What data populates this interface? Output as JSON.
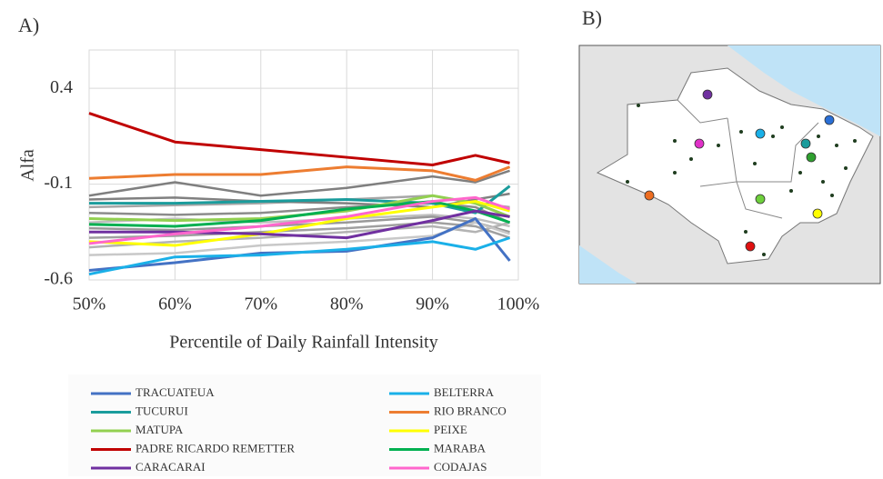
{
  "chart_data": {
    "type": "line",
    "panel_label": "A)",
    "map_label": "B)",
    "ylabel": "Alfa",
    "xlabel": "Percentile of Daily Rainfall Intensity",
    "x": [
      50,
      60,
      70,
      80,
      90,
      95,
      99
    ],
    "xlim": [
      50,
      100
    ],
    "xticks": [
      {
        "value": 50,
        "label": "50%"
      },
      {
        "value": 60,
        "label": "60%"
      },
      {
        "value": 70,
        "label": "70%"
      },
      {
        "value": 80,
        "label": "80%"
      },
      {
        "value": 90,
        "label": "90%"
      },
      {
        "value": 100,
        "label": "100%"
      }
    ],
    "ylim": [
      -0.6,
      0.6
    ],
    "yticks": [
      -0.6,
      -0.1,
      0.4
    ],
    "grid": true,
    "legend": "bottom",
    "series": [
      {
        "name": "TRACUATEUA",
        "color": "#4472c4",
        "values": [
          -0.55,
          -0.51,
          -0.46,
          -0.45,
          -0.38,
          -0.28,
          -0.5
        ]
      },
      {
        "name": "BELTERRA",
        "color": "#1ab0e8",
        "values": [
          -0.57,
          -0.48,
          -0.47,
          -0.44,
          -0.4,
          -0.44,
          -0.38
        ]
      },
      {
        "name": "TUCURUI",
        "color": "#1a9c9c",
        "values": [
          -0.2,
          -0.2,
          -0.19,
          -0.18,
          -0.2,
          -0.25,
          -0.11
        ]
      },
      {
        "name": "RIO BRANCO",
        "color": "#ed7d31",
        "values": [
          -0.07,
          -0.05,
          -0.05,
          -0.01,
          -0.03,
          -0.08,
          -0.01
        ]
      },
      {
        "name": "MATUPA",
        "color": "#92d050",
        "values": [
          -0.28,
          -0.29,
          -0.28,
          -0.24,
          -0.16,
          -0.2,
          -0.27
        ]
      },
      {
        "name": "PEIXE",
        "color": "#ffff00",
        "values": [
          -0.4,
          -0.42,
          -0.36,
          -0.28,
          -0.22,
          -0.19,
          -0.24
        ]
      },
      {
        "name": "PADRE RICARDO REMETTER",
        "color": "#c00000",
        "values": [
          0.27,
          0.12,
          0.08,
          0.04,
          0.0,
          0.05,
          0.01
        ]
      },
      {
        "name": "MARABA",
        "color": "#00b050",
        "values": [
          -0.31,
          -0.32,
          -0.29,
          -0.23,
          -0.19,
          -0.24,
          -0.3
        ]
      },
      {
        "name": "CARACARAI",
        "color": "#7030a0",
        "values": [
          -0.35,
          -0.35,
          -0.36,
          -0.38,
          -0.29,
          -0.24,
          -0.27
        ]
      },
      {
        "name": "CODAJAS",
        "color": "#ff66cc",
        "values": [
          -0.41,
          -0.36,
          -0.32,
          -0.27,
          -0.19,
          -0.17,
          -0.23
        ]
      },
      {
        "color": "#7f7f7f",
        "values": [
          -0.16,
          -0.09,
          -0.16,
          -0.12,
          -0.06,
          -0.09,
          -0.03
        ]
      },
      {
        "color": "#a6a6a6",
        "values": [
          -0.22,
          -0.21,
          -0.2,
          -0.18,
          -0.16,
          -0.2,
          -0.22
        ]
      },
      {
        "color": "#8c8c8c",
        "values": [
          -0.25,
          -0.26,
          -0.25,
          -0.22,
          -0.2,
          -0.22,
          -0.3
        ]
      },
      {
        "color": "#bfbfbf",
        "values": [
          -0.3,
          -0.28,
          -0.3,
          -0.28,
          -0.26,
          -0.28,
          -0.32
        ]
      },
      {
        "color": "#999999",
        "values": [
          -0.33,
          -0.34,
          -0.32,
          -0.3,
          -0.27,
          -0.3,
          -0.35
        ]
      },
      {
        "color": "#b3b3b3",
        "values": [
          -0.43,
          -0.4,
          -0.38,
          -0.35,
          -0.32,
          -0.35,
          -0.3
        ]
      },
      {
        "color": "#c8c8c8",
        "values": [
          -0.47,
          -0.46,
          -0.42,
          -0.4,
          -0.37,
          -0.3,
          -0.36
        ]
      },
      {
        "color": "#808080",
        "values": [
          -0.18,
          -0.17,
          -0.19,
          -0.2,
          -0.22,
          -0.18,
          -0.15
        ]
      },
      {
        "color": "#a0a0a0",
        "values": [
          -0.38,
          -0.37,
          -0.35,
          -0.33,
          -0.3,
          -0.32,
          -0.38
        ]
      }
    ]
  }
}
